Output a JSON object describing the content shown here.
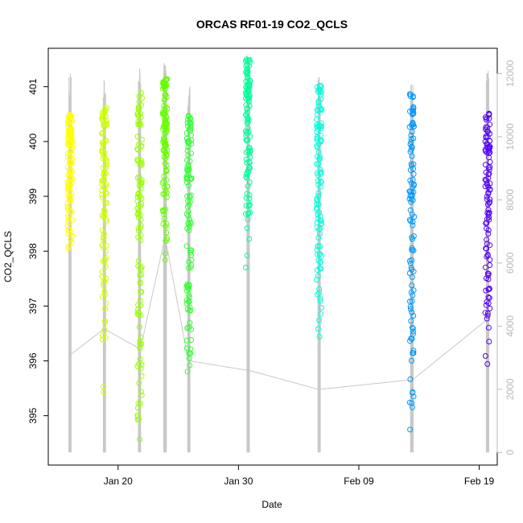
{
  "chart_data": {
    "type": "scatter",
    "title": "ORCAS RF01-19 CO2_QCLS",
    "xlabel": "Date",
    "ylabel": "CO2_QCLS",
    "x_ticks": [
      "Jan 20",
      "Jan 30",
      "Feb 09",
      "Feb 19"
    ],
    "x_tick_offsets": [
      4,
      14,
      24,
      34
    ],
    "xlim": [
      -1.8,
      35.5
    ],
    "ylim": [
      394.1,
      401.7
    ],
    "y_ticks": [
      395,
      396,
      397,
      398,
      399,
      400,
      401
    ],
    "y2label": "",
    "y2lim": [
      -400,
      12800
    ],
    "y2_ticks": [
      0,
      2000,
      4000,
      6000,
      8000,
      10000,
      12000
    ],
    "y2_color": "#b8b8b8",
    "grid": false,
    "legend": "none",
    "flights": [
      {
        "day": 0.0,
        "co2_min": 397.8,
        "co2_max": 400.5,
        "alt_max": 12000,
        "alt_start": 3100,
        "color": "#ffff00"
      },
      {
        "day": 2.85,
        "co2_min": 395.1,
        "co2_max": 400.65,
        "alt_max": 11900,
        "alt_start": 3900,
        "color": "#ccff00"
      },
      {
        "day": 5.8,
        "co2_min": 394.35,
        "co2_max": 400.9,
        "alt_max": 12200,
        "alt_start": 3300,
        "color": "#99ff00"
      },
      {
        "day": 7.9,
        "co2_min": 397.7,
        "co2_max": 401.2,
        "alt_max": 12400,
        "alt_start": 6700,
        "color": "#66ff00"
      },
      {
        "day": 9.9,
        "co2_min": 395.3,
        "co2_max": 400.5,
        "alt_max": 11600,
        "alt_start": 2900,
        "color": "#33ff33"
      },
      {
        "day": 14.8,
        "co2_min": 397.5,
        "co2_max": 401.5,
        "alt_max": 12700,
        "alt_start": 2600,
        "color": "#00ff99"
      },
      {
        "day": 20.7,
        "co2_min": 396.0,
        "co2_max": 401.1,
        "alt_max": 11900,
        "alt_start": 2000,
        "color": "#00ffdd"
      },
      {
        "day": 28.4,
        "co2_min": 394.55,
        "co2_max": 400.9,
        "alt_max": 11700,
        "alt_start": 2300,
        "color": "#0099ff"
      },
      {
        "day": 34.7,
        "co2_min": 395.9,
        "co2_max": 400.55,
        "alt_max": 12100,
        "alt_start": 4200,
        "color": "#5500ff"
      }
    ],
    "altitude_line_color": "#c8c8c8"
  }
}
